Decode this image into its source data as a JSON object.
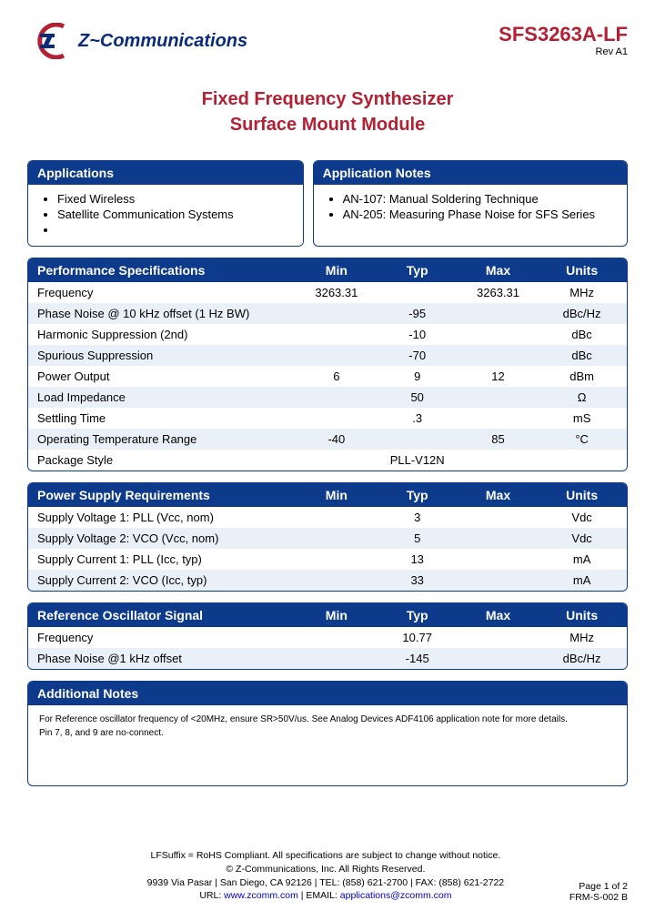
{
  "header": {
    "company_name": "Z~Communications",
    "part_number": "SFS3263A-LF",
    "revision": "Rev  A1"
  },
  "title": {
    "line1": "Fixed Frequency Synthesizer",
    "line2": "Surface Mount Module"
  },
  "applications": {
    "header": "Applications",
    "items": [
      "Fixed Wireless",
      "Satellite Communication Systems"
    ]
  },
  "app_notes": {
    "header": "Application Notes",
    "items": [
      "AN-107: Manual Soldering Technique",
      "AN-205: Measuring Phase Noise for SFS Series"
    ]
  },
  "perf_specs": {
    "header": "Performance Specifications",
    "cols": [
      "Min",
      "Typ",
      "Max",
      "Units"
    ],
    "rows": [
      {
        "spec": "Frequency",
        "min": "3263.31",
        "typ": "",
        "max": "3263.31",
        "units": "MHz"
      },
      {
        "spec": "Phase Noise @ 10 kHz offset (1 Hz BW)",
        "min": "",
        "typ": "-95",
        "max": "",
        "units": "dBc/Hz"
      },
      {
        "spec": "Harmonic Suppression (2nd)",
        "min": "",
        "typ": "-10",
        "max": "",
        "units": "dBc"
      },
      {
        "spec": "Spurious Suppression",
        "min": "",
        "typ": "-70",
        "max": "",
        "units": "dBc"
      },
      {
        "spec": "Power Output",
        "min": "6",
        "typ": "9",
        "max": "12",
        "units": "dBm"
      },
      {
        "spec": "Load Impedance",
        "min": "",
        "typ": "50",
        "max": "",
        "units": "Ω"
      },
      {
        "spec": "Settling Time",
        "min": "",
        "typ": ".3",
        "max": "",
        "units": "mS"
      },
      {
        "spec": "Operating Temperature Range",
        "min": "-40",
        "typ": "",
        "max": "85",
        "units": "°C"
      },
      {
        "spec": "Package Style",
        "min": "",
        "typ": "PLL-V12N",
        "max": "",
        "units": ""
      }
    ]
  },
  "power": {
    "header": "Power Supply Requirements",
    "cols": [
      "Min",
      "Typ",
      "Max",
      "Units"
    ],
    "rows": [
      {
        "spec": "Supply Voltage 1: PLL (Vcc, nom)",
        "min": "",
        "typ": "3",
        "max": "",
        "units": "Vdc"
      },
      {
        "spec": "Supply Voltage 2: VCO (Vcc, nom)",
        "min": "",
        "typ": "5",
        "max": "",
        "units": "Vdc"
      },
      {
        "spec": "Supply Current 1: PLL (Icc, typ)",
        "min": "",
        "typ": "13",
        "max": "",
        "units": "mA"
      },
      {
        "spec": "Supply Current 2: VCO (Icc, typ)",
        "min": "",
        "typ": "33",
        "max": "",
        "units": "mA"
      }
    ]
  },
  "ref_osc": {
    "header": "Reference Oscillator Signal",
    "cols": [
      "Min",
      "Typ",
      "Max",
      "Units"
    ],
    "rows": [
      {
        "spec": "Frequency",
        "min": "",
        "typ": "10.77",
        "max": "",
        "units": "MHz"
      },
      {
        "spec": "Phase Noise @1 kHz offset",
        "min": "",
        "typ": "-145",
        "max": "",
        "units": "dBc/Hz"
      }
    ]
  },
  "notes": {
    "header": "Additional Notes",
    "text1": "For Reference oscillator frequency of <20MHz, ensure SR>50V/us. See Analog Devices ADF4106 application note for more details.",
    "text2": "Pin 7, 8, and 9 are no-connect."
  },
  "footer": {
    "line1": "LFSuffix = RoHS Compliant. All specifications are subject to change without notice.",
    "line2": "© Z-Communications, Inc. All Rights Reserved.",
    "line3": "9939 Via Pasar | San Diego, CA 92126 | TEL: (858) 621-2700 | FAX: (858) 621-2722",
    "line4_pre": "URL: ",
    "line4_url": "www.zcomm.com",
    "line4_mid": " | EMAIL: ",
    "line4_email": "applications@zcomm.com",
    "page": "Page 1 of 2",
    "doc": "FRM-S-002 B"
  },
  "colors": {
    "brand_blue": "#0d3a8a",
    "brand_red": "#b22234",
    "row_alt_bg": "#eaf0f8",
    "link_color": "#0000cc"
  }
}
